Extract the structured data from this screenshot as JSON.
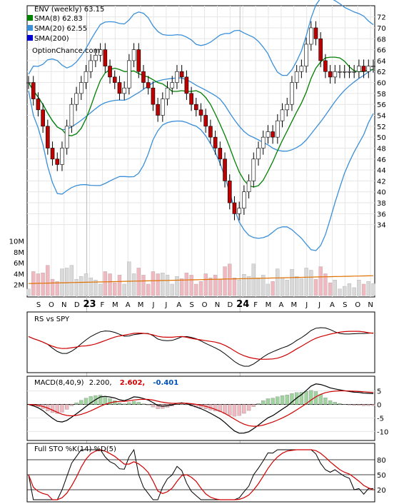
{
  "chart_data": {
    "type": "stock-chart",
    "title": "ENV (weekly) 63.15",
    "site": "OptionChance.com",
    "x_months": [
      "S",
      "O",
      "N",
      "D",
      "23",
      "F",
      "M",
      "A",
      "M",
      "J",
      "J",
      "A",
      "S",
      "O",
      "N",
      "D",
      "24",
      "F",
      "M",
      "A",
      "M",
      "J",
      "J",
      "A",
      "S",
      "O",
      "N"
    ],
    "price_panel": {
      "legend": [
        {
          "label": "SMA(8) 62.83",
          "color": "#008000"
        },
        {
          "label": "SMA(20) 62.55",
          "color": "#3a8fd8"
        },
        {
          "label": "SMA(200)",
          "color": "#0000cc"
        }
      ],
      "ylim": [
        32,
        73
      ],
      "y_ticks": [
        34,
        36,
        38,
        40,
        42,
        44,
        46,
        48,
        50,
        52,
        54,
        56,
        58,
        60,
        62,
        64,
        66,
        68,
        70,
        72
      ],
      "close": [
        60,
        57,
        55,
        52,
        48,
        46,
        45,
        48,
        52,
        56,
        58,
        60,
        62,
        64,
        65,
        66,
        63,
        61,
        60,
        58,
        59,
        64,
        66,
        62,
        60,
        59,
        56,
        54,
        57,
        59,
        60,
        62,
        61,
        58,
        56,
        55,
        54,
        52,
        50,
        48,
        46,
        42,
        38,
        36,
        37,
        40,
        42,
        46,
        48,
        50,
        51,
        50,
        53,
        55,
        56,
        60,
        62,
        63,
        67,
        70,
        68,
        64,
        62,
        61,
        62,
        62,
        62,
        62,
        62,
        63,
        62,
        63,
        63
      ]
    },
    "volume_panel": {
      "y_ticks": [
        "2M",
        "4M",
        "6M",
        "8M",
        "10M"
      ],
      "ylim": [
        0,
        11
      ]
    },
    "rs_panel": {
      "label": "RS vs SPY"
    },
    "macd_panel": {
      "label": "MACD(8,40,9)",
      "value": "2.200,",
      "signal": "2.602,",
      "histogram": "-0.401",
      "y_ticks": [
        "5",
        "0",
        "-5",
        "-10"
      ],
      "ylim": [
        -12,
        7
      ]
    },
    "sto_panel": {
      "label": "Full STO %K(14) %D(5)",
      "y_ticks": [
        "80",
        "50",
        "20"
      ],
      "ylim": [
        0,
        100
      ]
    }
  }
}
